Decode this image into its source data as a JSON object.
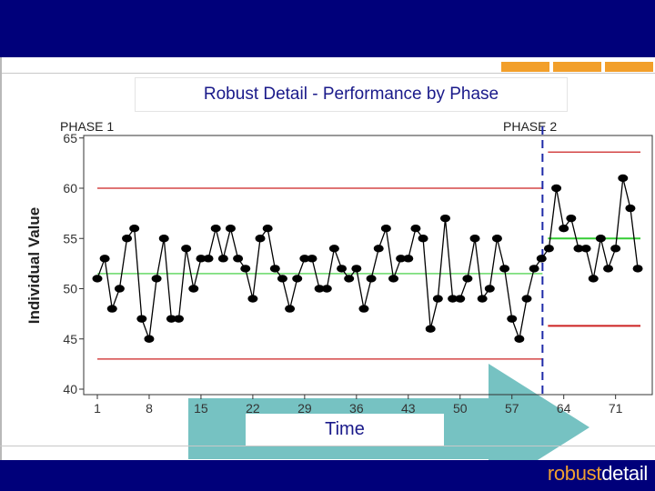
{
  "theme": {
    "navy": "#00007a",
    "orange": "#f29f2a",
    "teal": "#6fbfbf",
    "red": "#cc2222",
    "green": "#33cc33",
    "phase_line": "#1f2aa8"
  },
  "brand": {
    "part1": "robust",
    "part2": "detail"
  },
  "chart_data": {
    "type": "line",
    "title": "Robust Detail - Performance by Phase",
    "xlabel": "Time",
    "ylabel": "Individual Value",
    "xlim": [
      0,
      75
    ],
    "ylim": [
      40,
      65
    ],
    "x_ticks": [
      1,
      8,
      15,
      22,
      29,
      36,
      43,
      50,
      57,
      64,
      71
    ],
    "y_ticks": [
      40,
      45,
      50,
      55,
      60,
      65
    ],
    "phase_labels": [
      "PHASE 1",
      "PHASE 2"
    ],
    "phase_boundary": 61.5,
    "x": [
      1,
      2,
      3,
      4,
      5,
      6,
      7,
      8,
      9,
      10,
      11,
      12,
      13,
      14,
      15,
      16,
      17,
      18,
      19,
      20,
      21,
      22,
      23,
      24,
      25,
      26,
      27,
      28,
      29,
      30,
      31,
      32,
      33,
      34,
      35,
      36,
      37,
      38,
      39,
      40,
      41,
      42,
      43,
      44,
      45,
      46,
      47,
      48,
      49,
      50,
      51,
      52,
      53,
      54,
      55,
      56,
      57,
      58,
      59,
      60,
      61,
      62,
      63,
      64,
      65,
      66,
      67,
      68,
      69,
      70,
      71,
      72,
      73,
      74
    ],
    "values": [
      51,
      53,
      48,
      50,
      55,
      56,
      47,
      45,
      51,
      55,
      47,
      47,
      54,
      50,
      53,
      53,
      56,
      53,
      56,
      53,
      52,
      49,
      55,
      56,
      52,
      51,
      48,
      51,
      53,
      53,
      50,
      50,
      54,
      52,
      51,
      52,
      48,
      51,
      54,
      56,
      51,
      53,
      53,
      56,
      55,
      46,
      49,
      57,
      49,
      49,
      51,
      55,
      49,
      50,
      55,
      52,
      47,
      45,
      49,
      52,
      53,
      54,
      60,
      56,
      57,
      54,
      54,
      51,
      55,
      52,
      54,
      61,
      58,
      52
    ],
    "limits": [
      {
        "x_start": 1,
        "x_end": 61.5,
        "center": 51.5,
        "upper": 60,
        "lower": 43
      },
      {
        "x_start": 61.5,
        "x_end": 74,
        "center": 55,
        "upper": 63.6,
        "lower": 46.3
      }
    ],
    "grid": false
  }
}
